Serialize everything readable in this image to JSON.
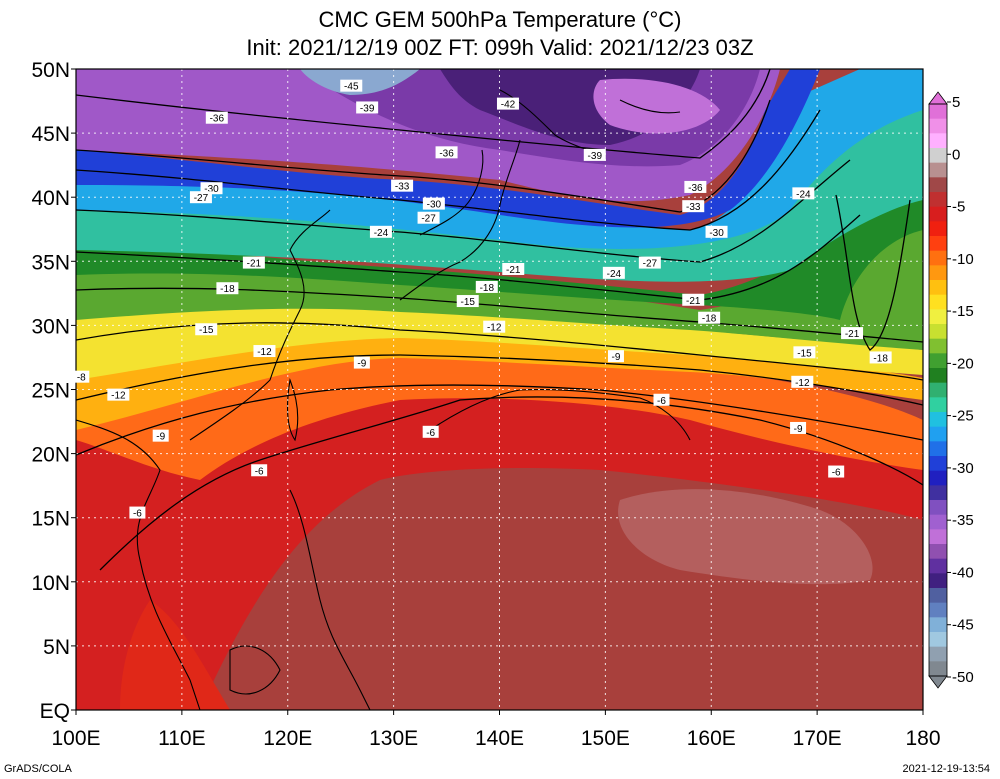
{
  "title": {
    "line1": "CMC GEM 500hPa Temperature (°C)",
    "line2": "Init: 2021/12/19 00Z  FT: 099h  Valid: 2021/12/23 03Z"
  },
  "footer": {
    "credit": "GrADS/COLA",
    "timestamp": "2021-12-19-13:54"
  },
  "map": {
    "lon_range": [
      100,
      180
    ],
    "lat_range": [
      0,
      50
    ],
    "x_ticks": [
      "100E",
      "110E",
      "120E",
      "130E",
      "140E",
      "150E",
      "160E",
      "170E",
      "180"
    ],
    "y_ticks": [
      "EQ",
      "5N",
      "10N",
      "15N",
      "20N",
      "25N",
      "30N",
      "35N",
      "40N",
      "45N",
      "50N"
    ],
    "colorbar": {
      "labels": [
        "5",
        "0",
        "-5",
        "-10",
        "-15",
        "-20",
        "-25",
        "-30",
        "-35",
        "-40",
        "-45",
        "-50"
      ],
      "colors": [
        "#e070d8",
        "#f090e8",
        "#ffb0ff",
        "#d0d0d0",
        "#b89090",
        "#a04848",
        "#c03030",
        "#d81e1e",
        "#f02010",
        "#ff4010",
        "#ff7010",
        "#ff9810",
        "#ffc010",
        "#ffe020",
        "#f0f040",
        "#c8e030",
        "#80c030",
        "#40a030",
        "#208020",
        "#30b070",
        "#30d0a0",
        "#20c0e0",
        "#20a0f0",
        "#2070e8",
        "#2040d8",
        "#2020c0",
        "#4030a0",
        "#8050c0",
        "#a060d0",
        "#c070d8",
        "#9050b0",
        "#6030a0",
        "#402080",
        "#5060a0",
        "#6080c0",
        "#80b0d8",
        "#a0c8e0",
        "#90a0b0",
        "#808890"
      ]
    },
    "contour_labels": [
      {
        "text": "-45",
        "lon": 126.0,
        "lat": 48.7
      },
      {
        "text": "-42",
        "lon": 140.8,
        "lat": 47.3
      },
      {
        "text": "-39",
        "lon": 127.5,
        "lat": 47.0
      },
      {
        "text": "-39",
        "lon": 149.0,
        "lat": 43.3
      },
      {
        "text": "-36",
        "lon": 113.3,
        "lat": 46.2
      },
      {
        "text": "-36",
        "lon": 135.0,
        "lat": 43.5
      },
      {
        "text": "-36",
        "lon": 158.5,
        "lat": 40.8
      },
      {
        "text": "-33",
        "lon": 130.8,
        "lat": 40.9
      },
      {
        "text": "-33",
        "lon": 158.3,
        "lat": 39.3
      },
      {
        "text": "-30",
        "lon": 112.8,
        "lat": 40.7
      },
      {
        "text": "-30",
        "lon": 133.8,
        "lat": 39.5
      },
      {
        "text": "-30",
        "lon": 160.5,
        "lat": 37.3
      },
      {
        "text": "-27",
        "lon": 111.8,
        "lat": 40.0
      },
      {
        "text": "-27",
        "lon": 133.3,
        "lat": 38.4
      },
      {
        "text": "-27",
        "lon": 154.2,
        "lat": 34.9
      },
      {
        "text": "-24",
        "lon": 128.8,
        "lat": 37.3
      },
      {
        "text": "-24",
        "lon": 150.8,
        "lat": 34.1
      },
      {
        "text": "-24",
        "lon": 168.7,
        "lat": 40.3
      },
      {
        "text": "-21",
        "lon": 116.8,
        "lat": 34.9
      },
      {
        "text": "-21",
        "lon": 141.3,
        "lat": 34.4
      },
      {
        "text": "-21",
        "lon": 158.3,
        "lat": 32.0
      },
      {
        "text": "-21",
        "lon": 173.3,
        "lat": 29.4
      },
      {
        "text": "-18",
        "lon": 114.3,
        "lat": 32.9
      },
      {
        "text": "-18",
        "lon": 138.8,
        "lat": 33.0
      },
      {
        "text": "-18",
        "lon": 159.8,
        "lat": 30.6
      },
      {
        "text": "-18",
        "lon": 176.0,
        "lat": 27.5
      },
      {
        "text": "-15",
        "lon": 112.3,
        "lat": 29.7
      },
      {
        "text": "-15",
        "lon": 137.0,
        "lat": 31.9
      },
      {
        "text": "-15",
        "lon": 168.8,
        "lat": 27.9
      },
      {
        "text": "-12",
        "lon": 104.0,
        "lat": 24.6
      },
      {
        "text": "-12",
        "lon": 117.8,
        "lat": 28.0
      },
      {
        "text": "-12",
        "lon": 139.5,
        "lat": 29.9
      },
      {
        "text": "-12",
        "lon": 168.6,
        "lat": 25.6
      },
      {
        "text": "-9",
        "lon": 108.0,
        "lat": 21.4
      },
      {
        "text": "-9",
        "lon": 127.0,
        "lat": 27.1
      },
      {
        "text": "-9",
        "lon": 151.0,
        "lat": 27.6
      },
      {
        "text": "-9",
        "lon": 168.2,
        "lat": 22.0
      },
      {
        "text": "-8",
        "lon": 100.5,
        "lat": 26.0
      },
      {
        "text": "-6",
        "lon": 105.8,
        "lat": 15.4
      },
      {
        "text": "-6",
        "lon": 117.3,
        "lat": 18.7
      },
      {
        "text": "-6",
        "lon": 133.5,
        "lat": 21.7
      },
      {
        "text": "-6",
        "lon": 155.3,
        "lat": 24.2
      },
      {
        "text": "-6",
        "lon": 171.8,
        "lat": 18.6
      }
    ]
  }
}
